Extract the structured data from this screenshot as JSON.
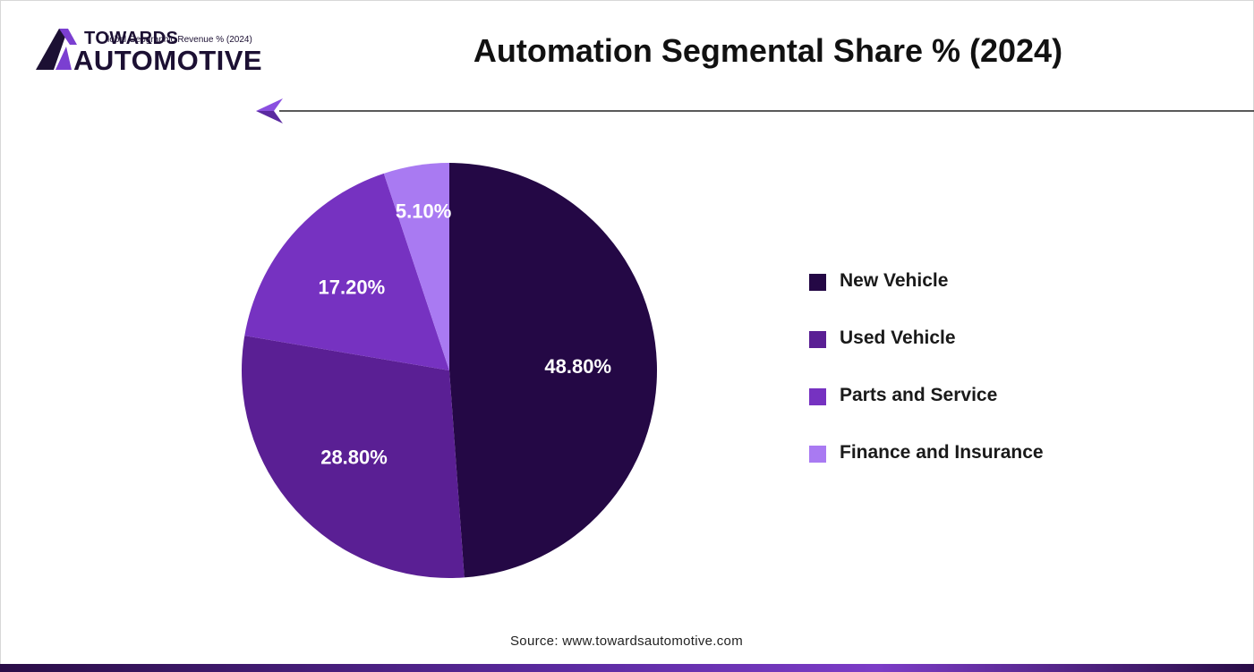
{
  "brand": {
    "line1": "TOWARDS",
    "line2": "AUTOMOTIVE",
    "overlay_text": "lobal Geographic Revenue % (2024)",
    "mark_icon": "triangle-a-icon",
    "colors": {
      "dark": "#1c1033",
      "accent": "#7b3fd1"
    }
  },
  "header": {
    "title": "Automation Segmental Share % (2024)",
    "arrow_icon": "left-arrow-icon"
  },
  "chart_data": {
    "type": "pie",
    "title": "Automation Segmental Share % (2024)",
    "start": "12 o'clock, clockwise",
    "legend_placement": "right",
    "series": [
      {
        "name": "New Vehicle",
        "value": 48.8,
        "label": "48.80%",
        "color": "#240845"
      },
      {
        "name": "Used Vehicle",
        "value": 28.8,
        "label": "28.80%",
        "color": "#5a1f94"
      },
      {
        "name": "Parts and Service",
        "value": 17.2,
        "label": "17.20%",
        "color": "#7632c1"
      },
      {
        "name": "Finance and Insurance",
        "value": 5.1,
        "label": "5.10%",
        "color": "#a97af2"
      }
    ]
  },
  "footer": {
    "source": "Source: www.towardsautomotive.com"
  }
}
